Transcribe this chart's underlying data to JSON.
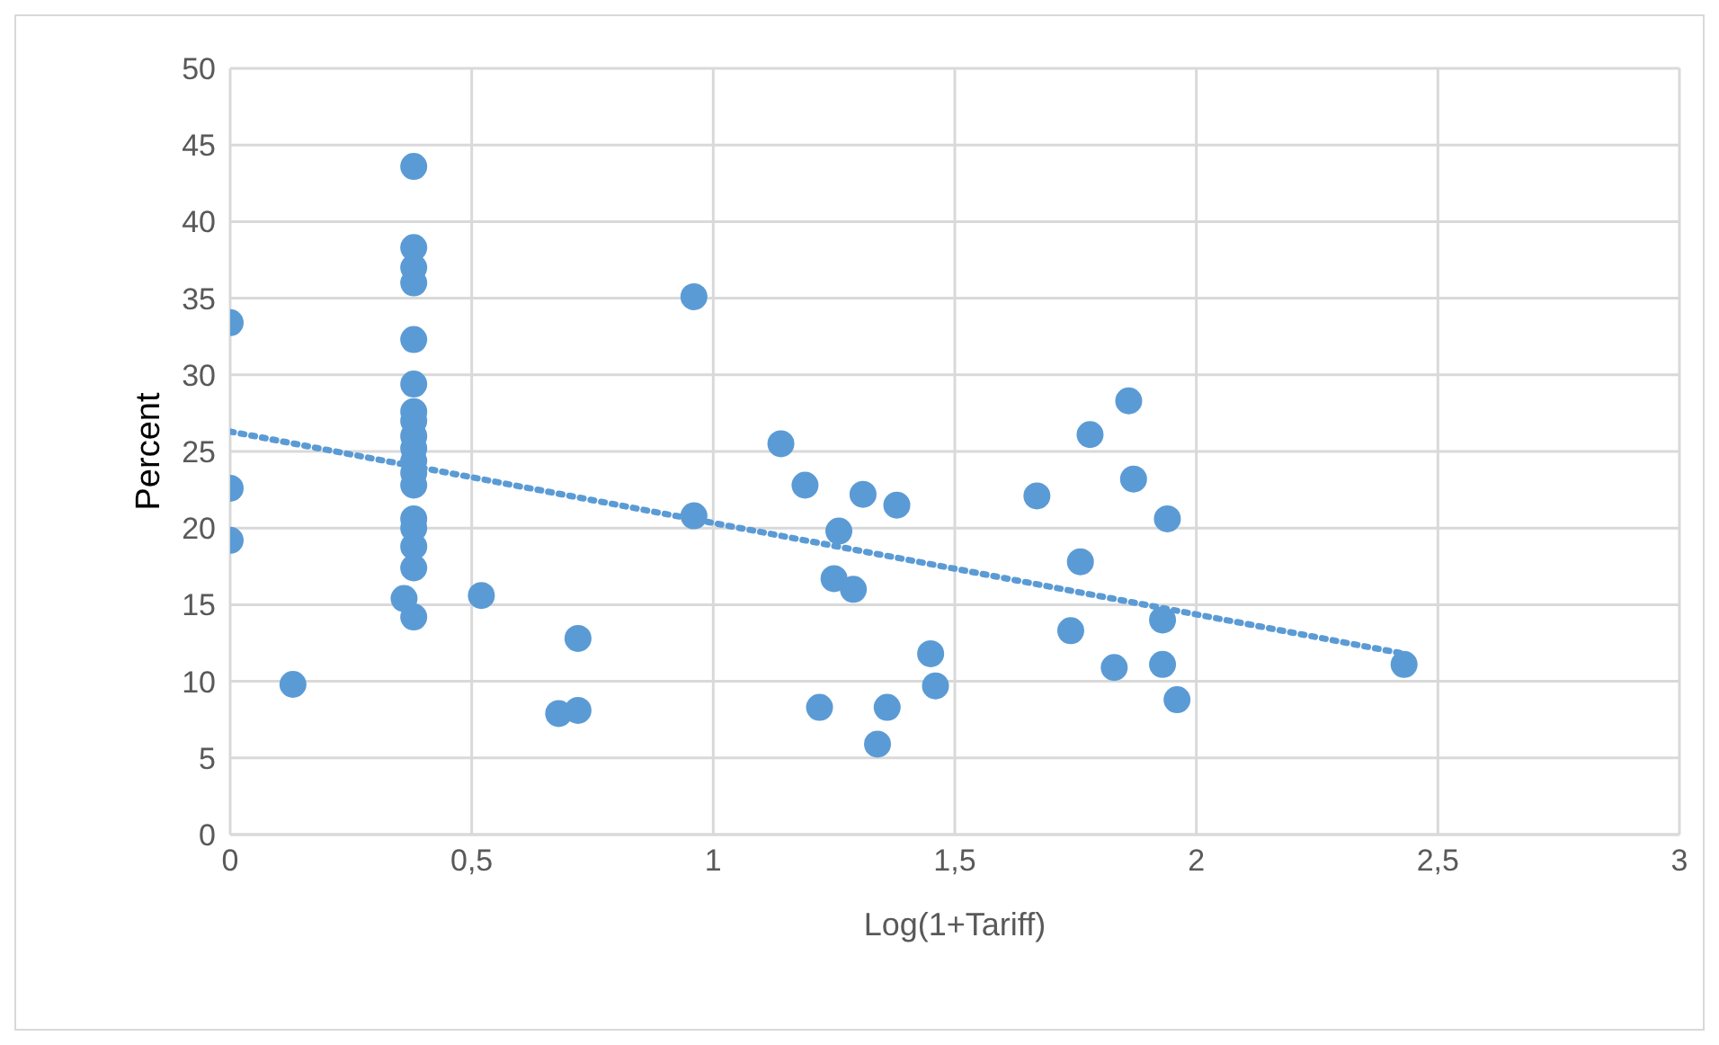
{
  "chart_data": {
    "type": "scatter",
    "xlabel": "Log(1+Tariff)",
    "ylabel": "Percent",
    "xlim": [
      0,
      3
    ],
    "xticks": [
      0,
      {
        "value": 0.5,
        "label": "0,5"
      },
      1,
      {
        "value": 1.5,
        "label": "1,5"
      },
      2,
      {
        "value": 2.5,
        "label": "2,5"
      },
      3
    ],
    "ylim": [
      0,
      50
    ],
    "yticks": [
      0,
      5,
      10,
      15,
      20,
      25,
      30,
      35,
      40,
      45,
      50
    ],
    "grid": true,
    "marker": "circle",
    "series": [
      {
        "color": "#5b9bd5",
        "x": [
          0,
          0,
          0,
          0.13,
          0.38,
          0.38,
          0.38,
          0.38,
          0.38,
          0.38,
          0.38,
          0.38,
          0.38,
          0.38,
          0.38,
          0.38,
          0.38,
          0.38,
          0.38,
          0.38,
          0.38,
          0.38,
          0.36,
          0.52,
          0.68,
          0.72,
          0.72,
          0.96,
          0.96,
          1.14,
          1.19,
          1.22,
          1.25,
          1.26,
          1.29,
          1.31,
          1.34,
          1.36,
          1.38,
          1.45,
          1.46,
          1.67,
          1.74,
          1.76,
          1.78,
          1.83,
          1.86,
          1.87,
          1.93,
          1.93,
          1.94,
          1.96,
          2.43
        ],
        "values": [
          33.4,
          22.6,
          19.2,
          9.8,
          43.6,
          38.3,
          37.0,
          36.0,
          32.3,
          29.4,
          27.6,
          27.0,
          26.0,
          25.2,
          24.4,
          23.6,
          22.8,
          20.6,
          20.0,
          18.8,
          17.4,
          14.2,
          15.4,
          15.6,
          7.9,
          8.1,
          12.8,
          35.1,
          20.8,
          25.5,
          22.8,
          8.3,
          16.7,
          19.8,
          16.0,
          22.2,
          5.9,
          8.3,
          21.5,
          11.8,
          9.7,
          22.1,
          13.3,
          17.8,
          26.1,
          10.9,
          28.3,
          23.2,
          14.0,
          11.1,
          20.6,
          8.8,
          11.1
        ]
      },
      {
        "type": "line",
        "color": "#5b9bd5",
        "line_style": "dotted",
        "marker": "none",
        "x": [
          0,
          2.43
        ],
        "values": [
          26.3,
          11.8
        ]
      }
    ]
  }
}
